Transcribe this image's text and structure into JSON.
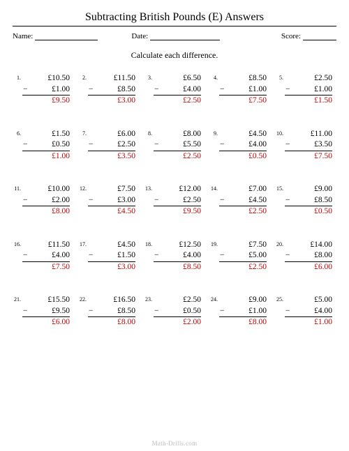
{
  "title": "Subtracting British Pounds (E) Answers",
  "meta": {
    "name_label": "Name:",
    "date_label": "Date:",
    "score_label": "Score:"
  },
  "instruction": "Calculate each difference.",
  "footer": "Math-Drills.com",
  "colors": {
    "answer": "#c00000",
    "footer": "#bdbdbd",
    "rule": "#000000",
    "background": "#ffffff"
  },
  "layout": {
    "columns": 5,
    "rows": 5
  },
  "problems": [
    {
      "n": "1.",
      "a": "£10.50",
      "b": "£1.00",
      "ans": "£9.50"
    },
    {
      "n": "2.",
      "a": "£11.50",
      "b": "£8.50",
      "ans": "£3.00"
    },
    {
      "n": "3.",
      "a": "£6.50",
      "b": "£4.00",
      "ans": "£2.50"
    },
    {
      "n": "4.",
      "a": "£8.50",
      "b": "£1.00",
      "ans": "£7.50"
    },
    {
      "n": "5.",
      "a": "£2.50",
      "b": "£1.00",
      "ans": "£1.50"
    },
    {
      "n": "6.",
      "a": "£1.50",
      "b": "£0.50",
      "ans": "£1.00"
    },
    {
      "n": "7.",
      "a": "£6.00",
      "b": "£2.50",
      "ans": "£3.50"
    },
    {
      "n": "8.",
      "a": "£8.00",
      "b": "£5.50",
      "ans": "£2.50"
    },
    {
      "n": "9.",
      "a": "£4.50",
      "b": "£4.00",
      "ans": "£0.50"
    },
    {
      "n": "10.",
      "a": "£11.00",
      "b": "£3.50",
      "ans": "£7.50"
    },
    {
      "n": "11.",
      "a": "£10.00",
      "b": "£2.00",
      "ans": "£8.00"
    },
    {
      "n": "12.",
      "a": "£7.50",
      "b": "£3.00",
      "ans": "£4.50"
    },
    {
      "n": "13.",
      "a": "£12.00",
      "b": "£2.50",
      "ans": "£9.50"
    },
    {
      "n": "14.",
      "a": "£7.00",
      "b": "£4.50",
      "ans": "£2.50"
    },
    {
      "n": "15.",
      "a": "£9.00",
      "b": "£8.50",
      "ans": "£0.50"
    },
    {
      "n": "16.",
      "a": "£11.50",
      "b": "£4.00",
      "ans": "£7.50"
    },
    {
      "n": "17.",
      "a": "£4.50",
      "b": "£1.50",
      "ans": "£3.00"
    },
    {
      "n": "18.",
      "a": "£12.50",
      "b": "£4.00",
      "ans": "£8.50"
    },
    {
      "n": "19.",
      "a": "£7.50",
      "b": "£5.00",
      "ans": "£2.50"
    },
    {
      "n": "20.",
      "a": "£14.00",
      "b": "£8.00",
      "ans": "£6.00"
    },
    {
      "n": "21.",
      "a": "£15.50",
      "b": "£9.50",
      "ans": "£6.00"
    },
    {
      "n": "22.",
      "a": "£16.50",
      "b": "£8.50",
      "ans": "£8.00"
    },
    {
      "n": "23.",
      "a": "£2.50",
      "b": "£0.50",
      "ans": "£2.00"
    },
    {
      "n": "24.",
      "a": "£9.00",
      "b": "£1.00",
      "ans": "£8.00"
    },
    {
      "n": "25.",
      "a": "£5.00",
      "b": "£4.00",
      "ans": "£1.00"
    }
  ]
}
